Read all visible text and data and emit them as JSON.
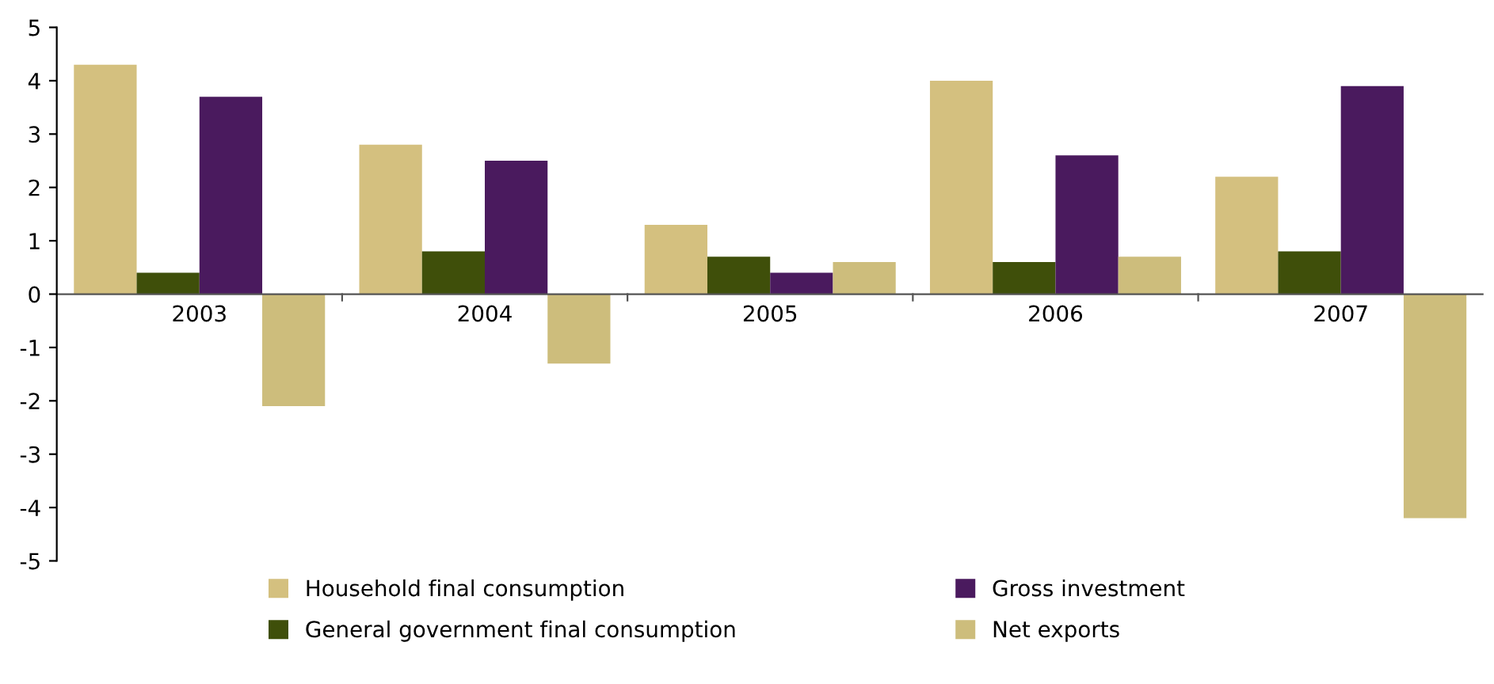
{
  "chart_data": {
    "type": "bar",
    "categories": [
      "2003",
      "2004",
      "2005",
      "2006",
      "2007"
    ],
    "series": [
      {
        "name": "Household final consumption",
        "color": "#d4c07f",
        "values": [
          4.3,
          2.8,
          1.3,
          4.0,
          2.2
        ]
      },
      {
        "name": "General government final consumption",
        "color": "#3f4f0a",
        "values": [
          0.4,
          0.8,
          0.7,
          0.6,
          0.8
        ]
      },
      {
        "name": "Gross investment",
        "color": "#4a1a5e",
        "values": [
          3.7,
          2.5,
          0.4,
          2.6,
          3.9
        ]
      },
      {
        "name": "Net exports",
        "color": "#cdbd7c",
        "values": [
          -2.1,
          -1.3,
          0.6,
          0.7,
          -4.2
        ]
      }
    ],
    "ylim": [
      -5,
      5
    ],
    "yticks": [
      -5,
      -4,
      -3,
      -2,
      -1,
      0,
      1,
      2,
      3,
      4,
      5
    ],
    "grid": false,
    "legend": "bottom"
  }
}
